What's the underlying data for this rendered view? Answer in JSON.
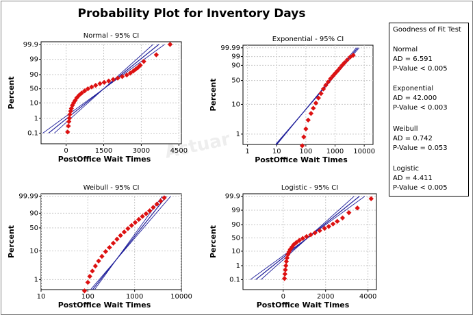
{
  "title": "Probability Plot for Inventory Days",
  "watermark": "Actuar",
  "legend": {
    "title": "Goodness of Fit Test",
    "entries": [
      {
        "name": "Normal",
        "ad": "AD = 6.591",
        "p": "P-Value < 0.005"
      },
      {
        "name": "Exponential",
        "ad": "AD = 42.000",
        "p": "P-Value < 0.003"
      },
      {
        "name": "Weibull",
        "ad": "AD = 0.742",
        "p": "P-Value = 0.053"
      },
      {
        "name": "Logistic",
        "ad": "AD = 4.411",
        "p": "P-Value < 0.005"
      }
    ]
  },
  "chart_data": [
    {
      "type": "scatter",
      "title": "Normal - 95% CI",
      "xlabel": "PostOffice Wait Times",
      "ylabel": "Percent",
      "x_scale": "linear",
      "xlim": [
        -1000,
        4600
      ],
      "x_ticks": [
        0,
        1500,
        3000,
        4500
      ],
      "x_tick_labels": [
        "0",
        "1500",
        "3000",
        "4500"
      ],
      "y_ticks": [
        0.1,
        1,
        10,
        50,
        90,
        99,
        99.9
      ],
      "y_tick_labels": [
        "0.1",
        "1",
        "10",
        "50",
        "90",
        "99",
        "99.9"
      ],
      "fit_line": {
        "x": [
          -700,
          3700
        ],
        "p": [
          0.1,
          99.9
        ]
      },
      "ci_spread": 230,
      "x": [
        60,
        90,
        110,
        130,
        150,
        180,
        210,
        250,
        300,
        360,
        430,
        520,
        620,
        740,
        870,
        1020,
        1180,
        1350,
        1520,
        1700,
        1880,
        2060,
        2240,
        2420,
        2560,
        2680,
        2780,
        2870,
        2960,
        3100,
        3600,
        4150
      ],
      "y": [
        0.12,
        0.3,
        0.6,
        1.0,
        1.8,
        3,
        4.5,
        7,
        10,
        14,
        20,
        27,
        34,
        42,
        50,
        57,
        63,
        69,
        73,
        77,
        81,
        84,
        87,
        89.5,
        92,
        94,
        95.5,
        96.5,
        97.5,
        98.6,
        99.5,
        99.9
      ]
    },
    {
      "type": "scatter",
      "title": "Exponential - 95% CI",
      "xlabel": "PostOffice Wait Times",
      "ylabel": "Percent",
      "x_scale": "log",
      "xlim": [
        0.7,
        20000
      ],
      "x_ticks": [
        1,
        10,
        100,
        1000,
        10000
      ],
      "x_tick_labels": [
        "1",
        "10",
        "100",
        "1000",
        "10000"
      ],
      "y_ticks": [
        1,
        10,
        50,
        90,
        99,
        99.99
      ],
      "y_tick_labels": [
        "1",
        "10",
        "50",
        "90",
        "99",
        "99.99"
      ],
      "fit_line": {
        "x": [
          1,
          6000
        ],
        "p": [
          0.02,
          99.99
        ]
      },
      "ci_spread": 0.05,
      "x": [
        65,
        75,
        85,
        100,
        120,
        150,
        180,
        220,
        270,
        330,
        400,
        480,
        580,
        700,
        850,
        1000,
        1200,
        1450,
        1750,
        2100,
        2600,
        3300,
        4200
      ],
      "y": [
        0.06,
        0.4,
        0.8,
        1.5,
        3,
        5,
        7.5,
        11,
        16,
        22,
        30,
        38,
        46,
        55,
        63,
        70,
        77,
        84,
        90,
        94,
        97,
        98.8,
        99.4
      ]
    },
    {
      "type": "scatter",
      "title": "Weibull - 95% CI",
      "xlabel": "PostOffice Wait Times",
      "ylabel": "Percent",
      "x_scale": "log",
      "xlim": [
        10,
        10000
      ],
      "x_ticks": [
        10,
        100,
        1000,
        10000
      ],
      "x_tick_labels": [
        "10",
        "100",
        "1000",
        "10000"
      ],
      "y_ticks": [
        1,
        10,
        50,
        90,
        99.99
      ],
      "y_tick_labels": [
        "1",
        "10",
        "50",
        "90",
        "99.99"
      ],
      "fit_line": {
        "x": [
          35,
          4800
        ],
        "p": [
          0.02,
          99.99
        ]
      },
      "ci_spread": 0.09,
      "x": [
        65,
        85,
        100,
        110,
        125,
        145,
        170,
        200,
        240,
        290,
        350,
        420,
        500,
        600,
        720,
        860,
        1030,
        1230,
        1470,
        1760,
        2100,
        2500,
        3000,
        3600,
        4300
      ],
      "y": [
        0.1,
        0.4,
        0.8,
        1.3,
        2,
        3,
        4.5,
        6.5,
        9.5,
        13,
        18,
        24,
        31,
        39,
        48,
        57,
        66,
        75,
        83,
        89,
        94,
        97.5,
        99.2,
        99.8,
        99.97
      ]
    },
    {
      "type": "scatter",
      "title": "Logistic - 95% CI",
      "xlabel": "PostOffice Wait Times",
      "ylabel": "Percent",
      "x_scale": "linear",
      "xlim": [
        -1900,
        4400
      ],
      "x_ticks": [
        0,
        2000,
        4000
      ],
      "x_tick_labels": [
        "0",
        "2000",
        "4000"
      ],
      "y_ticks": [
        0.1,
        1,
        10,
        50,
        90,
        99,
        99.9
      ],
      "y_tick_labels": [
        "0.1",
        "1",
        "10",
        "50",
        "90",
        "99",
        "99.9"
      ],
      "fit_line": {
        "x": [
          -1300,
          3600
        ],
        "p": [
          0.1,
          99.9
        ]
      },
      "ci_spread": 250,
      "x": [
        60,
        80,
        100,
        125,
        150,
        180,
        220,
        270,
        330,
        410,
        500,
        620,
        760,
        920,
        1100,
        1300,
        1500,
        1720,
        1950,
        2150,
        2350,
        2550,
        2800,
        3100,
        3500,
        4150
      ],
      "y": [
        0.12,
        0.25,
        0.5,
        1,
        2,
        3.5,
        6,
        9,
        13,
        18,
        25,
        32,
        40,
        48,
        56,
        63,
        70,
        77,
        83,
        87,
        91,
        94,
        96.5,
        98.5,
        99.3,
        99.85
      ]
    }
  ]
}
